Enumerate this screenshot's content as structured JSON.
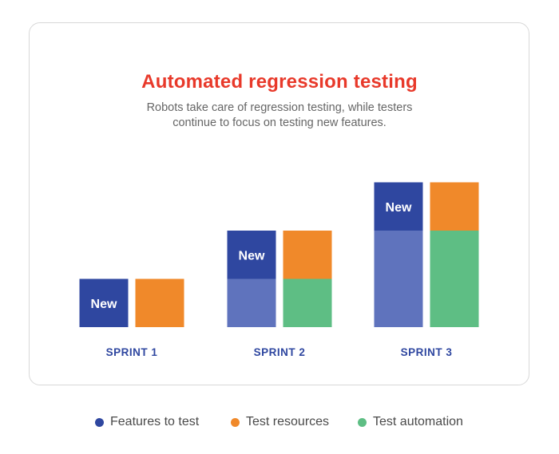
{
  "header": {
    "title": "Automated regression testing",
    "subtitle_line1": "Robots take care of regression testing, while testers",
    "subtitle_line2": "continue to focus on testing new features."
  },
  "colors": {
    "features": "#2f47a0",
    "features_light": "#5f73bd",
    "resources": "#f0892a",
    "automation": "#5ebe84",
    "title": "#e8392a",
    "axis_label": "#2f47a0"
  },
  "chart_data": {
    "type": "bar",
    "stacked": true,
    "categories": [
      "SPRINT 1",
      "SPRINT 2",
      "SPRINT 3"
    ],
    "unit_note": "",
    "features_stack": [
      {
        "existing": 0,
        "new": 1,
        "new_label": "New"
      },
      {
        "existing": 1,
        "new": 1,
        "new_label": "New"
      },
      {
        "existing": 2,
        "new": 1,
        "new_label": "New"
      }
    ],
    "resources_stack": [
      {
        "automation": 0,
        "resources": 1
      },
      {
        "automation": 1,
        "resources": 1
      },
      {
        "automation": 2,
        "resources": 1
      }
    ],
    "ylim": [
      0,
      3
    ],
    "grid": false,
    "legend_position": "bottom"
  },
  "legend": [
    {
      "label": "Features to test",
      "color": "#2f47a0"
    },
    {
      "label": "Test resources",
      "color": "#f0892a"
    },
    {
      "label": "Test automation",
      "color": "#5ebe84"
    }
  ]
}
